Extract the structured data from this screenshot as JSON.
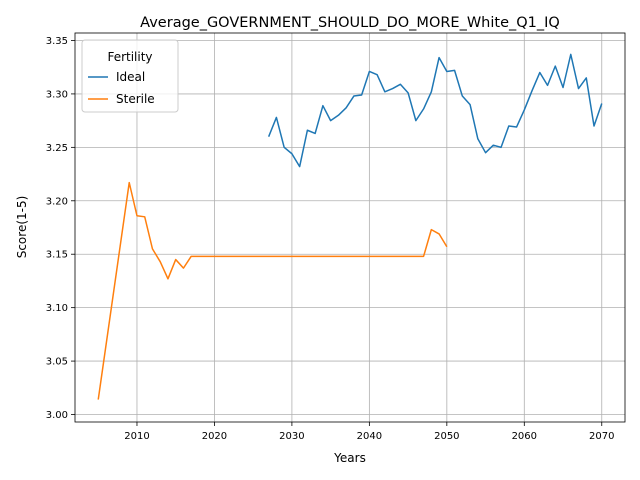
{
  "chart_data": {
    "type": "line",
    "title": "Average_GOVERNMENT_SHOULD_DO_MORE_White_Q1_IQ",
    "xlabel": "Years",
    "ylabel": "Score(1-5)",
    "xlim": [
      2002,
      2073
    ],
    "ylim": [
      2.993,
      3.357
    ],
    "xticks": [
      2010,
      2020,
      2030,
      2040,
      2050,
      2060,
      2070
    ],
    "yticks": [
      3.0,
      3.05,
      3.1,
      3.15,
      3.2,
      3.25,
      3.3,
      3.35
    ],
    "ytick_labels": [
      "3.00",
      "3.05",
      "3.10",
      "3.15",
      "3.20",
      "3.25",
      "3.30",
      "3.35"
    ],
    "grid": true,
    "legend": {
      "title": "Fertility",
      "position": "top-left"
    },
    "series": [
      {
        "name": "Ideal",
        "color": "#1f77b4",
        "points": [
          [
            2027,
            3.26
          ],
          [
            2028,
            3.278
          ],
          [
            2029,
            3.25
          ],
          [
            2030,
            3.244
          ],
          [
            2031,
            3.232
          ],
          [
            2032,
            3.266
          ],
          [
            2033,
            3.263
          ],
          [
            2034,
            3.289
          ],
          [
            2035,
            3.275
          ],
          [
            2036,
            3.28
          ],
          [
            2037,
            3.287
          ],
          [
            2038,
            3.298
          ],
          [
            2039,
            3.299
          ],
          [
            2040,
            3.321
          ],
          [
            2041,
            3.318
          ],
          [
            2042,
            3.302
          ],
          [
            2043,
            3.305
          ],
          [
            2044,
            3.309
          ],
          [
            2045,
            3.301
          ],
          [
            2046,
            3.275
          ],
          [
            2047,
            3.286
          ],
          [
            2048,
            3.302
          ],
          [
            2049,
            3.334
          ],
          [
            2050,
            3.321
          ],
          [
            2051,
            3.322
          ],
          [
            2052,
            3.298
          ],
          [
            2053,
            3.29
          ],
          [
            2054,
            3.258
          ],
          [
            2055,
            3.245
          ],
          [
            2056,
            3.252
          ],
          [
            2057,
            3.25
          ],
          [
            2058,
            3.27
          ],
          [
            2059,
            3.269
          ],
          [
            2060,
            3.285
          ],
          [
            2061,
            3.303
          ],
          [
            2062,
            3.32
          ],
          [
            2063,
            3.308
          ],
          [
            2064,
            3.326
          ],
          [
            2065,
            3.306
          ],
          [
            2066,
            3.337
          ],
          [
            2067,
            3.305
          ],
          [
            2068,
            3.315
          ],
          [
            2069,
            3.27
          ],
          [
            2070,
            3.291
          ]
        ]
      },
      {
        "name": "Sterile",
        "color": "#ff7f0e",
        "points": [
          [
            2005,
            3.014
          ],
          [
            2009,
            3.217
          ],
          [
            2010,
            3.186
          ],
          [
            2011,
            3.185
          ],
          [
            2012,
            3.155
          ],
          [
            2013,
            3.143
          ],
          [
            2014,
            3.127
          ],
          [
            2015,
            3.145
          ],
          [
            2016,
            3.137
          ],
          [
            2017,
            3.148
          ],
          [
            2018,
            3.148
          ],
          [
            2047,
            3.148
          ],
          [
            2048,
            3.173
          ],
          [
            2049,
            3.169
          ],
          [
            2050,
            3.157
          ]
        ]
      }
    ]
  }
}
